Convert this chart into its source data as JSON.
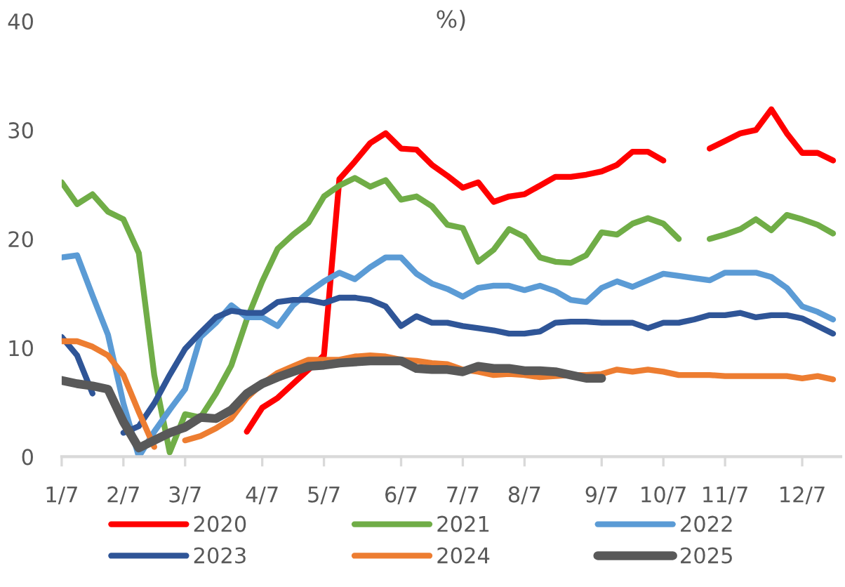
{
  "chart_data": {
    "type": "line",
    "title": "%)",
    "categories": [
      "1/7",
      null,
      null,
      null,
      "2/7",
      null,
      null,
      null,
      "3/7",
      null,
      null,
      null,
      null,
      "4/7",
      null,
      null,
      null,
      "5/7",
      null,
      null,
      null,
      null,
      "6/7",
      null,
      null,
      null,
      "7/7",
      null,
      null,
      null,
      "8/7",
      null,
      null,
      null,
      null,
      "9/7",
      null,
      null,
      null,
      "10/7",
      null,
      null,
      null,
      "11/7",
      null,
      null,
      null,
      null,
      "12/7",
      null,
      null
    ],
    "ylim": [
      0,
      40
    ],
    "yticks": [
      0,
      10,
      20,
      30,
      40
    ],
    "grid": false,
    "legend": "bottom",
    "marker": "none",
    "line_style": "solid",
    "series": [
      {
        "name": "2020",
        "color": "#ff0000",
        "values": [
          null,
          null,
          null,
          null,
          null,
          null,
          null,
          null,
          null,
          null,
          null,
          null,
          2.3,
          4.5,
          5.4,
          6.7,
          8.0,
          9.3,
          25.5,
          27.1,
          28.8,
          29.7,
          28.3,
          28.2,
          26.8,
          25.8,
          24.7,
          25.2,
          23.4,
          23.9,
          24.1,
          24.9,
          25.7,
          25.7,
          25.9,
          26.2,
          26.8,
          28.0,
          28.0,
          27.2,
          null,
          null,
          28.3,
          29.0,
          29.7,
          30.0,
          31.9,
          29.7,
          27.9,
          27.9,
          27.2
        ]
      },
      {
        "name": "2021",
        "color": "#70ad47",
        "values": [
          25.2,
          23.2,
          24.1,
          22.5,
          21.8,
          18.7,
          7.5,
          0.4,
          3.9,
          3.6,
          5.8,
          8.4,
          12.6,
          16.1,
          19.1,
          20.4,
          21.5,
          23.9,
          24.9,
          25.6,
          24.8,
          25.4,
          23.6,
          23.9,
          23.0,
          21.3,
          21.0,
          17.9,
          19.0,
          20.9,
          20.2,
          18.3,
          17.9,
          17.8,
          18.5,
          20.6,
          20.4,
          21.4,
          21.9,
          21.4,
          20.0,
          null,
          20.0,
          20.4,
          20.9,
          21.8,
          20.8,
          22.2,
          21.8,
          21.3,
          20.5
        ]
      },
      {
        "name": "2022",
        "color": "#5b9bd5",
        "values": [
          18.3,
          18.5,
          14.8,
          11.2,
          4.9,
          0.0,
          2.3,
          4.3,
          6.2,
          11.0,
          12.3,
          13.9,
          12.8,
          12.8,
          12.0,
          13.9,
          15.1,
          16.1,
          16.9,
          16.3,
          17.4,
          18.3,
          18.3,
          16.8,
          15.9,
          15.4,
          14.7,
          15.5,
          15.7,
          15.7,
          15.3,
          15.7,
          15.2,
          14.4,
          14.2,
          15.5,
          16.1,
          15.6,
          16.2,
          16.8,
          16.6,
          16.4,
          16.2,
          16.9,
          16.9,
          16.9,
          16.5,
          15.5,
          13.8,
          13.3,
          12.6
        ]
      },
      {
        "name": "2023",
        "color": "#2f5597",
        "values": [
          11.0,
          9.3,
          5.8,
          null,
          2.2,
          2.8,
          4.9,
          7.5,
          9.9,
          11.4,
          12.8,
          13.4,
          13.2,
          13.2,
          14.2,
          14.4,
          14.4,
          14.1,
          14.6,
          14.6,
          14.4,
          13.8,
          12.0,
          12.9,
          12.3,
          12.3,
          12.0,
          11.8,
          11.6,
          11.3,
          11.3,
          11.5,
          12.3,
          12.4,
          12.4,
          12.3,
          12.3,
          12.3,
          11.8,
          12.3,
          12.3,
          12.6,
          13.0,
          13.0,
          13.2,
          12.8,
          13.0,
          13.0,
          12.7,
          12.0,
          11.3
        ]
      },
      {
        "name": "2024",
        "color": "#ed7d31",
        "values": [
          10.6,
          10.6,
          10.1,
          9.3,
          7.5,
          4.1,
          0.9,
          null,
          1.5,
          1.9,
          2.6,
          3.5,
          5.4,
          6.7,
          7.7,
          8.3,
          8.9,
          8.9,
          8.9,
          9.2,
          9.3,
          9.2,
          8.9,
          8.8,
          8.6,
          8.5,
          8.0,
          7.8,
          7.5,
          7.6,
          7.5,
          7.3,
          7.4,
          7.5,
          7.5,
          7.6,
          8.0,
          7.8,
          8.0,
          7.8,
          7.5,
          7.5,
          7.5,
          7.4,
          7.4,
          7.4,
          7.4,
          7.4,
          7.2,
          7.4,
          7.1
        ]
      },
      {
        "name": "2025",
        "color": "#595959",
        "values": [
          7.0,
          6.7,
          6.5,
          6.2,
          3.2,
          0.8,
          1.5,
          2.2,
          2.7,
          3.6,
          3.5,
          4.3,
          5.8,
          6.7,
          7.3,
          7.8,
          8.3,
          8.4,
          8.6,
          8.7,
          8.8,
          8.8,
          8.8,
          8.1,
          8.0,
          8.0,
          7.8,
          8.3,
          8.1,
          8.1,
          7.9,
          7.9,
          7.8,
          7.5,
          7.2,
          7.2,
          null,
          null,
          null,
          null,
          null,
          null,
          null,
          null,
          null,
          null,
          null,
          null,
          null,
          null,
          null
        ]
      }
    ]
  }
}
